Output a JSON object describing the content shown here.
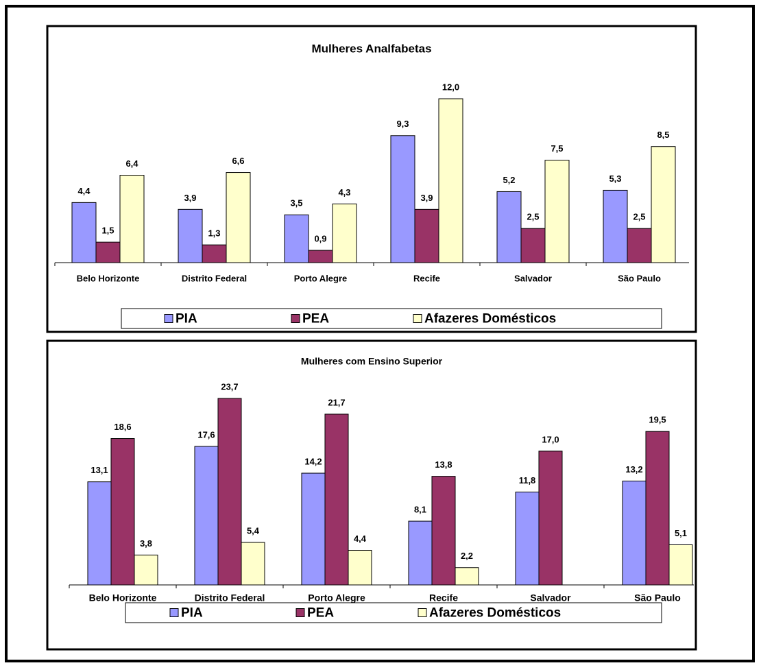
{
  "chart_data": [
    {
      "type": "bar",
      "title": "Mulheres Analfabetas",
      "categories": [
        "Belo Horizonte",
        "Distrito Federal",
        "Porto Alegre",
        "Recife",
        "Salvador",
        "São Paulo"
      ],
      "series": [
        {
          "name": "PIA",
          "color": "#9999ff",
          "values": [
            4.4,
            3.9,
            3.5,
            9.3,
            5.2,
            5.3
          ],
          "value_labels": [
            "4,4",
            "3,9",
            "3,5",
            "9,3",
            "5,2",
            "5,3"
          ]
        },
        {
          "name": "PEA",
          "color": "#993366",
          "values": [
            1.5,
            1.3,
            0.9,
            3.9,
            2.5,
            2.5
          ],
          "value_labels": [
            "1,5",
            "1,3",
            "0,9",
            "3,9",
            "2,5",
            "2,5"
          ]
        },
        {
          "name": "Afazeres Domésticos",
          "color": "#ffffcc",
          "values": [
            6.4,
            6.6,
            4.3,
            12.0,
            7.5,
            8.5
          ],
          "value_labels": [
            "6,4",
            "6,6",
            "4,3",
            "12,0",
            "7,5",
            "8,5"
          ]
        }
      ],
      "legend": "bottom"
    },
    {
      "type": "bar",
      "title": "Mulheres com Ensino Superior",
      "categories": [
        "Belo Horizonte",
        "Distrito Federal",
        "Porto Alegre",
        "Recife",
        "Salvador",
        "São Paulo"
      ],
      "series": [
        {
          "name": "PIA",
          "color": "#9999ff",
          "values": [
            13.1,
            17.6,
            14.2,
            8.1,
            11.8,
            13.2
          ],
          "value_labels": [
            "13,1",
            "17,6",
            "14,2",
            "8,1",
            "11,8",
            "13,2"
          ]
        },
        {
          "name": "PEA",
          "color": "#993366",
          "values": [
            18.6,
            23.7,
            21.7,
            13.8,
            17.0,
            19.5
          ],
          "value_labels": [
            "18,6",
            "23,7",
            "21,7",
            "13,8",
            "17,0",
            "19,5"
          ]
        },
        {
          "name": "Afazeres Domésticos",
          "color": "#ffffcc",
          "values": [
            3.8,
            5.4,
            4.4,
            2.2,
            null,
            5.1
          ],
          "value_labels": [
            "3,8",
            "5,4",
            "4,4",
            "2,2",
            null,
            "5,1"
          ]
        }
      ],
      "legend": "bottom"
    }
  ]
}
